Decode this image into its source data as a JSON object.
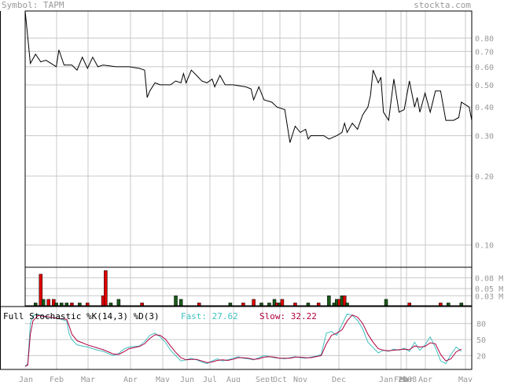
{
  "header": {
    "symbol_label": "Symbol: TAPM",
    "site": "stockta.com"
  },
  "colors": {
    "grid": "#c8c8c8",
    "axis": "#000000",
    "label": "#999999",
    "up_bar": "#1a5a1a",
    "down_bar": "#e00000",
    "fast_line": "#40c0c0",
    "slow_line": "#b00040",
    "stoch_title": "#000000"
  },
  "price_axis": {
    "ticks": [
      "0.80",
      "0.70",
      "0.60",
      "0.50",
      "0.40",
      "0.30",
      "0.20",
      "0.10"
    ],
    "scale": "log"
  },
  "volume_axis": {
    "ticks": [
      "0.08 M",
      "0.05 M",
      "0.03 M"
    ]
  },
  "stoch_axis": {
    "ticks": [
      "80",
      "50",
      "20"
    ]
  },
  "x_axis": {
    "labels": [
      "Jan",
      "Feb",
      "Mar",
      "Apr",
      "May",
      "Jun",
      "Jul",
      "Aug",
      "Sept",
      "Oct",
      "Nov",
      "Dec",
      "Jan 2008",
      "Feb",
      "Mar",
      "Apr",
      "May"
    ]
  },
  "stochastic": {
    "title": "Full Stochastic %K(14,3) %D(3)",
    "fast_label": "Fast: 27.62",
    "slow_label": "Slow: 32.22"
  },
  "chart_data": {
    "type": "line",
    "ylim": [
      0.08,
      1.05
    ],
    "price": [
      [
        0,
        1.05
      ],
      [
        2,
        0.62
      ],
      [
        4,
        0.68
      ],
      [
        6,
        0.63
      ],
      [
        8,
        0.64
      ],
      [
        10,
        0.62
      ],
      [
        12,
        0.6
      ],
      [
        13,
        0.71
      ],
      [
        15,
        0.61
      ],
      [
        18,
        0.61
      ],
      [
        20,
        0.58
      ],
      [
        22,
        0.66
      ],
      [
        24,
        0.59
      ],
      [
        26,
        0.66
      ],
      [
        28,
        0.6
      ],
      [
        30,
        0.61
      ],
      [
        35,
        0.6
      ],
      [
        40,
        0.6
      ],
      [
        44,
        0.59
      ],
      [
        46,
        0.58
      ],
      [
        47,
        0.44
      ],
      [
        48,
        0.47
      ],
      [
        50,
        0.51
      ],
      [
        52,
        0.5
      ],
      [
        54,
        0.5
      ],
      [
        56,
        0.5
      ],
      [
        58,
        0.52
      ],
      [
        60,
        0.51
      ],
      [
        61,
        0.56
      ],
      [
        62,
        0.51
      ],
      [
        64,
        0.58
      ],
      [
        66,
        0.55
      ],
      [
        68,
        0.52
      ],
      [
        70,
        0.51
      ],
      [
        72,
        0.53
      ],
      [
        73,
        0.49
      ],
      [
        75,
        0.55
      ],
      [
        77,
        0.5
      ],
      [
        80,
        0.5
      ],
      [
        85,
        0.49
      ],
      [
        87,
        0.48
      ],
      [
        88,
        0.43
      ],
      [
        90,
        0.49
      ],
      [
        92,
        0.43
      ],
      [
        95,
        0.42
      ],
      [
        97,
        0.4
      ],
      [
        100,
        0.39
      ],
      [
        102,
        0.28
      ],
      [
        104,
        0.33
      ],
      [
        106,
        0.31
      ],
      [
        108,
        0.32
      ],
      [
        109,
        0.29
      ],
      [
        110,
        0.3
      ],
      [
        115,
        0.3
      ],
      [
        117,
        0.29
      ],
      [
        120,
        0.3
      ],
      [
        122,
        0.31
      ],
      [
        123,
        0.34
      ],
      [
        124,
        0.31
      ],
      [
        126,
        0.34
      ],
      [
        128,
        0.32
      ],
      [
        130,
        0.37
      ],
      [
        132,
        0.4
      ],
      [
        133,
        0.45
      ],
      [
        134,
        0.58
      ],
      [
        136,
        0.51
      ],
      [
        137,
        0.54
      ],
      [
        138,
        0.38
      ],
      [
        140,
        0.35
      ],
      [
        142,
        0.53
      ],
      [
        144,
        0.38
      ],
      [
        146,
        0.39
      ],
      [
        148,
        0.52
      ],
      [
        150,
        0.4
      ],
      [
        151,
        0.44
      ],
      [
        152,
        0.38
      ],
      [
        154,
        0.46
      ],
      [
        156,
        0.38
      ],
      [
        158,
        0.47
      ],
      [
        160,
        0.47
      ],
      [
        162,
        0.35
      ],
      [
        165,
        0.35
      ],
      [
        167,
        0.36
      ],
      [
        168,
        0.42
      ],
      [
        171,
        0.4
      ],
      [
        172,
        0.35
      ]
    ],
    "volume": [
      [
        4,
        0.01,
        "up"
      ],
      [
        6,
        0.09,
        "down"
      ],
      [
        7,
        0.02,
        "up"
      ],
      [
        9,
        0.02,
        "down"
      ],
      [
        11,
        0.02,
        "down"
      ],
      [
        12,
        0.01,
        "up"
      ],
      [
        14,
        0.01,
        "up"
      ],
      [
        16,
        0.01,
        "up"
      ],
      [
        18,
        0.01,
        "down"
      ],
      [
        21,
        0.01,
        "up"
      ],
      [
        24,
        0.01,
        "down"
      ],
      [
        30,
        0.03,
        "down"
      ],
      [
        31,
        0.1,
        "down"
      ],
      [
        33,
        0.01,
        "up"
      ],
      [
        36,
        0.02,
        "up"
      ],
      [
        45,
        0.01,
        "down"
      ],
      [
        58,
        0.03,
        "up"
      ],
      [
        60,
        0.02,
        "up"
      ],
      [
        67,
        0.01,
        "down"
      ],
      [
        79,
        0.01,
        "up"
      ],
      [
        84,
        0.01,
        "down"
      ],
      [
        88,
        0.02,
        "down"
      ],
      [
        91,
        0.01,
        "up"
      ],
      [
        94,
        0.01,
        "up"
      ],
      [
        96,
        0.02,
        "up"
      ],
      [
        97,
        0.01,
        "down"
      ],
      [
        98,
        0.01,
        "up"
      ],
      [
        99,
        0.02,
        "down"
      ],
      [
        104,
        0.01,
        "down"
      ],
      [
        109,
        0.01,
        "up"
      ],
      [
        113,
        0.01,
        "down"
      ],
      [
        117,
        0.03,
        "up"
      ],
      [
        119,
        0.01,
        "up"
      ],
      [
        120,
        0.02,
        "up"
      ],
      [
        121,
        0.02,
        "down"
      ],
      [
        122,
        0.03,
        "up"
      ],
      [
        123,
        0.03,
        "down"
      ],
      [
        124,
        0.01,
        "up"
      ],
      [
        139,
        0.02,
        "up"
      ],
      [
        148,
        0.01,
        "down"
      ],
      [
        160,
        0.01,
        "down"
      ],
      [
        163,
        0.01,
        "up"
      ],
      [
        168,
        0.01,
        "up"
      ]
    ],
    "stoch_fast": [
      [
        0,
        0
      ],
      [
        1,
        5
      ],
      [
        2,
        80
      ],
      [
        3,
        95
      ],
      [
        5,
        97
      ],
      [
        8,
        92
      ],
      [
        12,
        90
      ],
      [
        16,
        85
      ],
      [
        17,
        60
      ],
      [
        18,
        50
      ],
      [
        20,
        40
      ],
      [
        24,
        36
      ],
      [
        28,
        30
      ],
      [
        30,
        28
      ],
      [
        32,
        24
      ],
      [
        34,
        20
      ],
      [
        36,
        24
      ],
      [
        38,
        32
      ],
      [
        40,
        36
      ],
      [
        44,
        38
      ],
      [
        46,
        46
      ],
      [
        48,
        58
      ],
      [
        50,
        62
      ],
      [
        52,
        55
      ],
      [
        54,
        45
      ],
      [
        56,
        30
      ],
      [
        58,
        20
      ],
      [
        60,
        10
      ],
      [
        62,
        12
      ],
      [
        64,
        15
      ],
      [
        66,
        12
      ],
      [
        68,
        8
      ],
      [
        70,
        5
      ],
      [
        72,
        10
      ],
      [
        74,
        14
      ],
      [
        76,
        10
      ],
      [
        78,
        12
      ],
      [
        80,
        15
      ],
      [
        82,
        18
      ],
      [
        84,
        15
      ],
      [
        86,
        14
      ],
      [
        88,
        12
      ],
      [
        90,
        16
      ],
      [
        92,
        20
      ],
      [
        94,
        18
      ],
      [
        96,
        16
      ],
      [
        98,
        15
      ],
      [
        100,
        14
      ],
      [
        102,
        16
      ],
      [
        104,
        18
      ],
      [
        106,
        16
      ],
      [
        108,
        15
      ],
      [
        110,
        17
      ],
      [
        112,
        19
      ],
      [
        114,
        22
      ],
      [
        116,
        62
      ],
      [
        118,
        65
      ],
      [
        120,
        58
      ],
      [
        122,
        78
      ],
      [
        124,
        98
      ],
      [
        126,
        95
      ],
      [
        128,
        86
      ],
      [
        130,
        70
      ],
      [
        132,
        45
      ],
      [
        134,
        35
      ],
      [
        136,
        25
      ],
      [
        138,
        30
      ],
      [
        140,
        28
      ],
      [
        142,
        32
      ],
      [
        144,
        30
      ],
      [
        146,
        34
      ],
      [
        148,
        28
      ],
      [
        150,
        45
      ],
      [
        152,
        30
      ],
      [
        154,
        40
      ],
      [
        156,
        55
      ],
      [
        158,
        35
      ],
      [
        160,
        10
      ],
      [
        162,
        5
      ],
      [
        164,
        22
      ],
      [
        166,
        36
      ],
      [
        168,
        28
      ]
    ],
    "stoch_slow": [
      [
        0,
        0
      ],
      [
        1,
        2
      ],
      [
        2,
        60
      ],
      [
        3,
        85
      ],
      [
        5,
        95
      ],
      [
        8,
        93
      ],
      [
        12,
        90
      ],
      [
        16,
        88
      ],
      [
        17,
        75
      ],
      [
        18,
        60
      ],
      [
        20,
        48
      ],
      [
        24,
        40
      ],
      [
        28,
        34
      ],
      [
        30,
        31
      ],
      [
        32,
        27
      ],
      [
        34,
        23
      ],
      [
        36,
        22
      ],
      [
        38,
        27
      ],
      [
        40,
        33
      ],
      [
        44,
        37
      ],
      [
        46,
        42
      ],
      [
        48,
        52
      ],
      [
        50,
        59
      ],
      [
        52,
        58
      ],
      [
        54,
        51
      ],
      [
        56,
        38
      ],
      [
        58,
        26
      ],
      [
        60,
        16
      ],
      [
        62,
        12
      ],
      [
        64,
        13
      ],
      [
        66,
        13
      ],
      [
        68,
        10
      ],
      [
        70,
        7
      ],
      [
        72,
        8
      ],
      [
        74,
        11
      ],
      [
        76,
        12
      ],
      [
        78,
        11
      ],
      [
        80,
        13
      ],
      [
        82,
        16
      ],
      [
        84,
        16
      ],
      [
        86,
        15
      ],
      [
        88,
        13
      ],
      [
        90,
        14
      ],
      [
        92,
        17
      ],
      [
        94,
        18
      ],
      [
        96,
        17
      ],
      [
        98,
        15
      ],
      [
        100,
        15
      ],
      [
        102,
        15
      ],
      [
        104,
        17
      ],
      [
        106,
        17
      ],
      [
        108,
        16
      ],
      [
        110,
        16
      ],
      [
        112,
        18
      ],
      [
        114,
        20
      ],
      [
        116,
        42
      ],
      [
        118,
        58
      ],
      [
        120,
        62
      ],
      [
        122,
        68
      ],
      [
        124,
        85
      ],
      [
        126,
        96
      ],
      [
        128,
        92
      ],
      [
        130,
        80
      ],
      [
        132,
        60
      ],
      [
        134,
        45
      ],
      [
        136,
        33
      ],
      [
        138,
        30
      ],
      [
        140,
        29
      ],
      [
        142,
        30
      ],
      [
        144,
        31
      ],
      [
        146,
        32
      ],
      [
        148,
        31
      ],
      [
        150,
        38
      ],
      [
        152,
        36
      ],
      [
        154,
        37
      ],
      [
        156,
        44
      ],
      [
        158,
        42
      ],
      [
        160,
        22
      ],
      [
        162,
        10
      ],
      [
        164,
        14
      ],
      [
        166,
        27
      ],
      [
        168,
        32
      ]
    ]
  }
}
